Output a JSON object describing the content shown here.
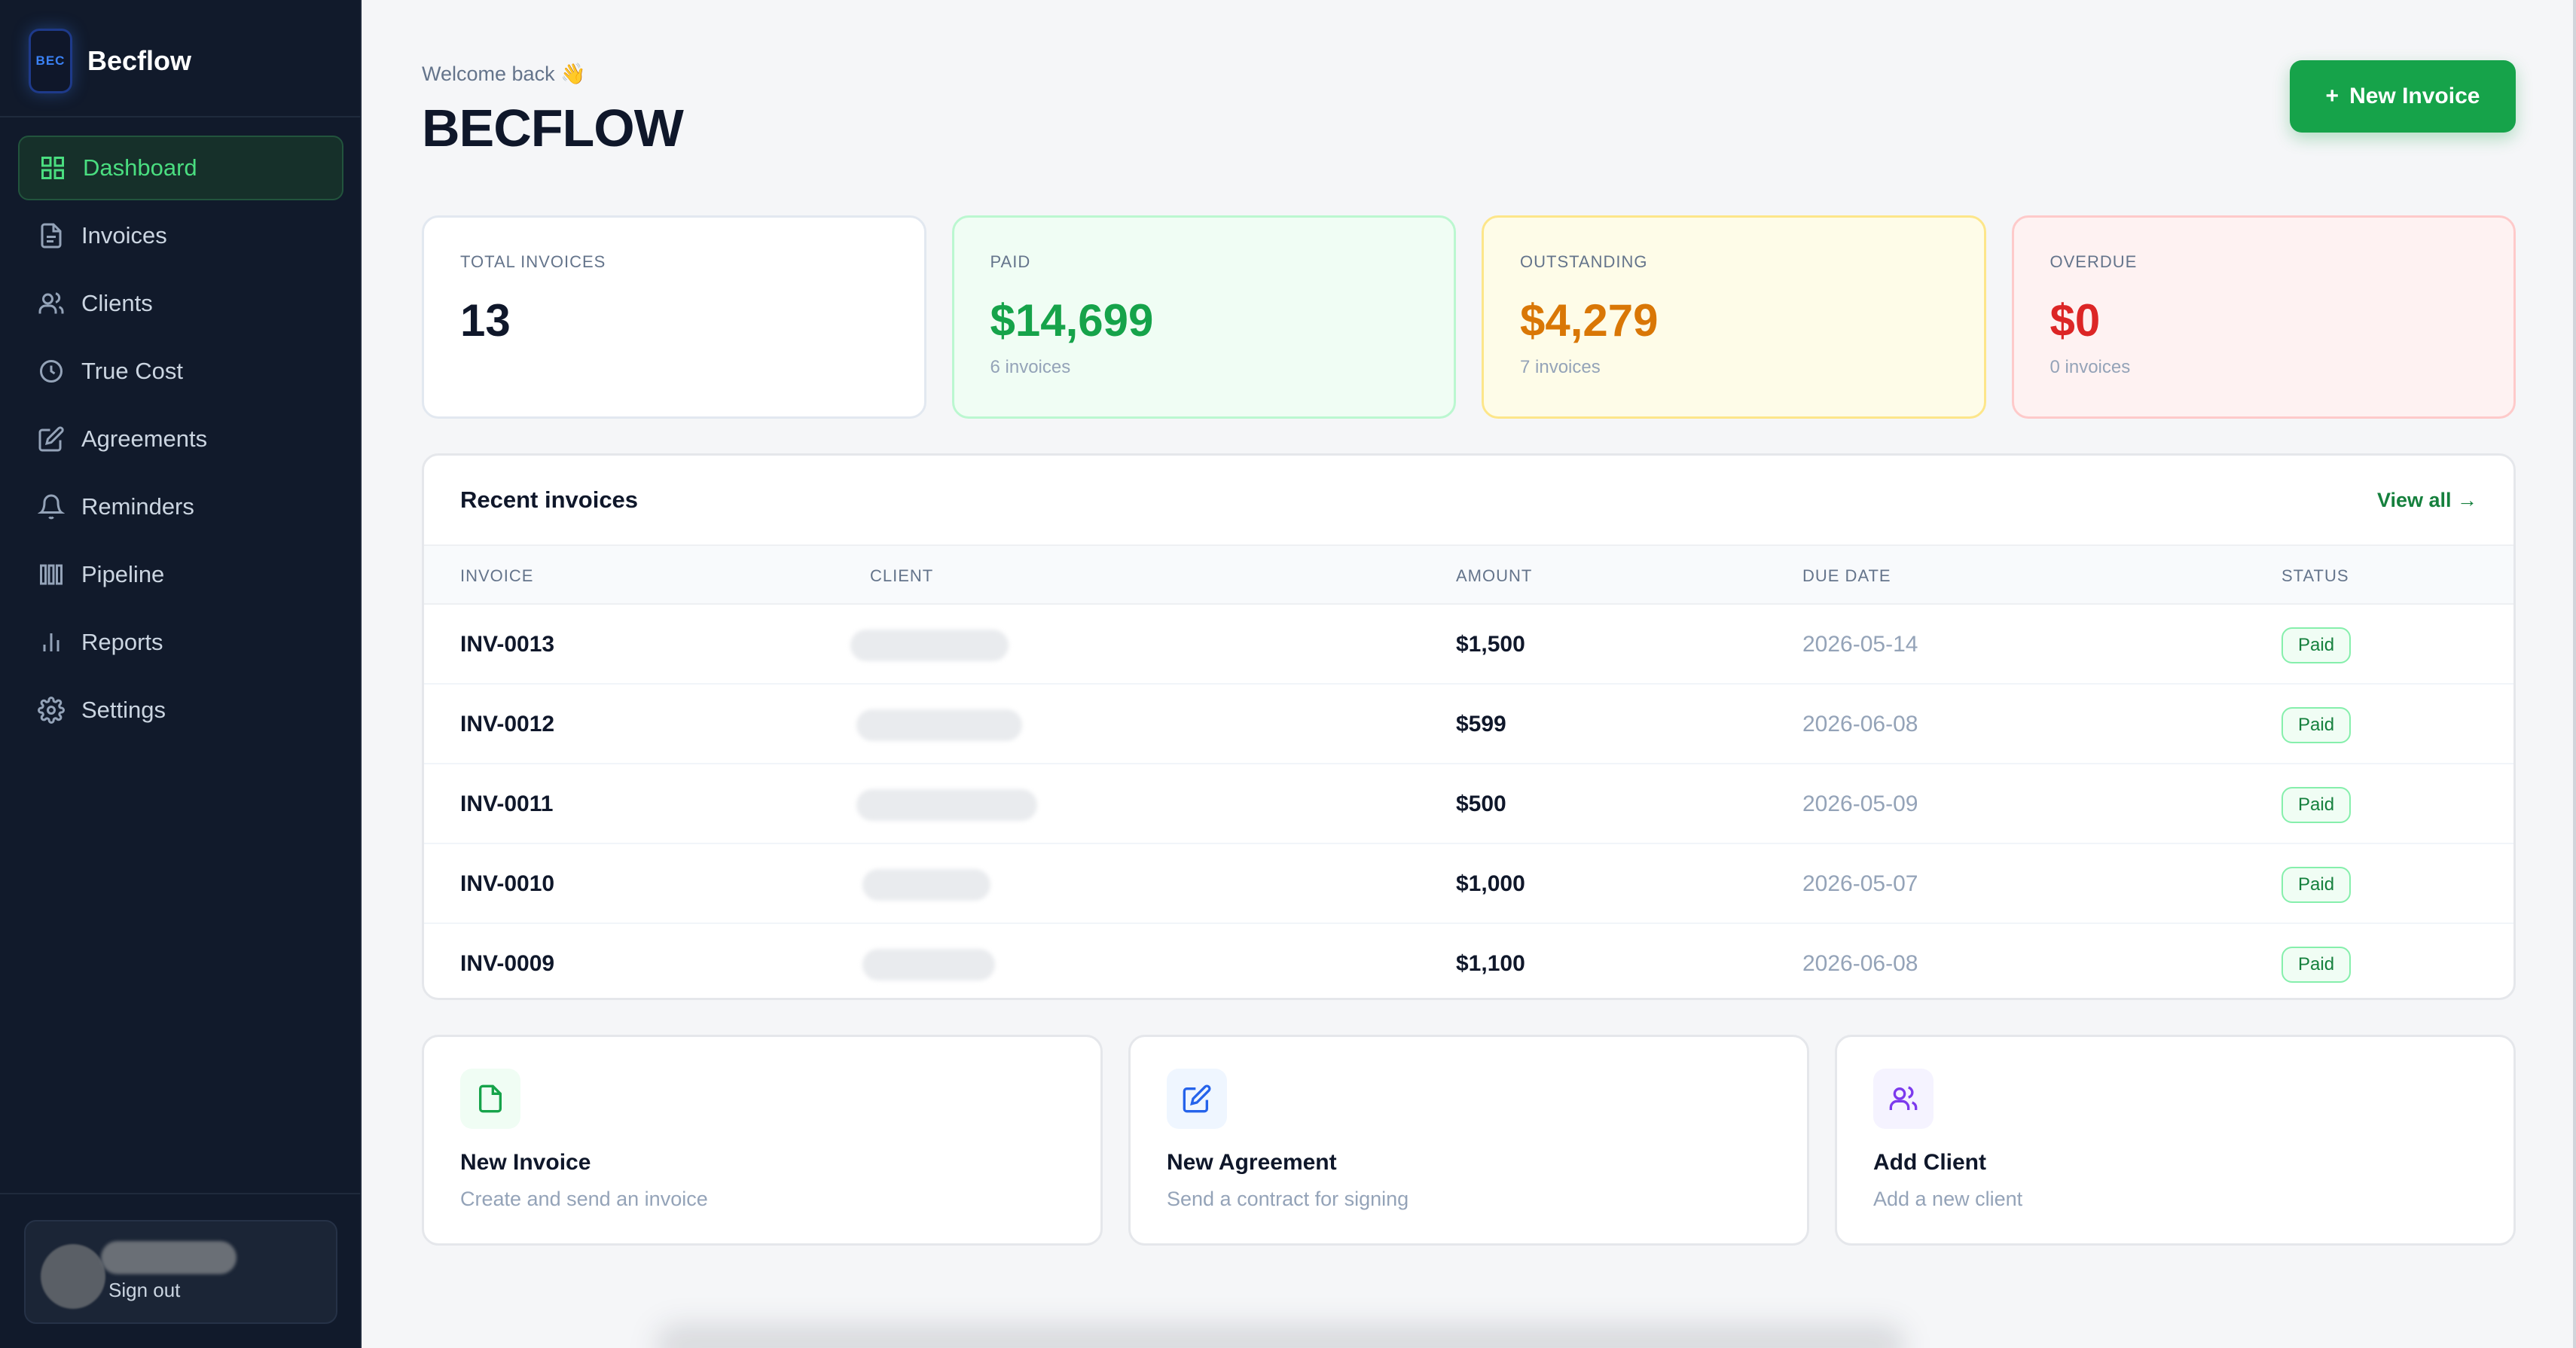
{
  "app": {
    "brand_logo_text": "BEC",
    "brand_name": "Becflow"
  },
  "sidebar": {
    "items": [
      {
        "label": "Dashboard",
        "icon": "grid-icon",
        "active": true
      },
      {
        "label": "Invoices",
        "icon": "file-icon"
      },
      {
        "label": "Clients",
        "icon": "users-icon"
      },
      {
        "label": "True Cost",
        "icon": "clock-icon"
      },
      {
        "label": "Agreements",
        "icon": "pen-square-icon"
      },
      {
        "label": "Reminders",
        "icon": "bell-icon"
      },
      {
        "label": "Pipeline",
        "icon": "columns-icon"
      },
      {
        "label": "Reports",
        "icon": "bar-chart-icon"
      },
      {
        "label": "Settings",
        "icon": "gear-icon"
      }
    ],
    "signout_label": "Sign out"
  },
  "header": {
    "welcome": "Welcome back 👋",
    "title": "BECFLOW",
    "new_invoice_label": "New Invoice"
  },
  "stats": [
    {
      "label": "TOTAL INVOICES",
      "value": "13",
      "sub": ""
    },
    {
      "label": "PAID",
      "value": "$14,699",
      "sub": "6 invoices"
    },
    {
      "label": "OUTSTANDING",
      "value": "$4,279",
      "sub": "7 invoices"
    },
    {
      "label": "OVERDUE",
      "value": "$0",
      "sub": "0 invoices"
    }
  ],
  "recent": {
    "title": "Recent invoices",
    "view_all": "View all →",
    "columns": [
      "INVOICE",
      "CLIENT",
      "AMOUNT",
      "DUE DATE",
      "STATUS"
    ],
    "rows": [
      {
        "invoice": "INV-0013",
        "amount": "$1,500",
        "due": "2026-05-14",
        "status": "Paid"
      },
      {
        "invoice": "INV-0012",
        "amount": "$599",
        "due": "2026-06-08",
        "status": "Paid"
      },
      {
        "invoice": "INV-0011",
        "amount": "$500",
        "due": "2026-05-09",
        "status": "Paid"
      },
      {
        "invoice": "INV-0010",
        "amount": "$1,000",
        "due": "2026-05-07",
        "status": "Paid"
      },
      {
        "invoice": "INV-0009",
        "amount": "$1,100",
        "due": "2026-06-08",
        "status": "Paid"
      }
    ]
  },
  "actions": [
    {
      "title": "New Invoice",
      "desc": "Create and send an invoice",
      "icon": "file-icon",
      "color": "#16a34a"
    },
    {
      "title": "New Agreement",
      "desc": "Send a contract for signing",
      "icon": "pen-square-icon",
      "color": "#2563eb"
    },
    {
      "title": "Add Client",
      "desc": "Add a new client",
      "icon": "users-icon",
      "color": "#7c3aed"
    }
  ],
  "colors": {
    "accent": "#16a34a",
    "sidebar_bg": "#111a2b",
    "paid": "#16a34a",
    "outstanding": "#d97706",
    "overdue": "#dc2626"
  }
}
